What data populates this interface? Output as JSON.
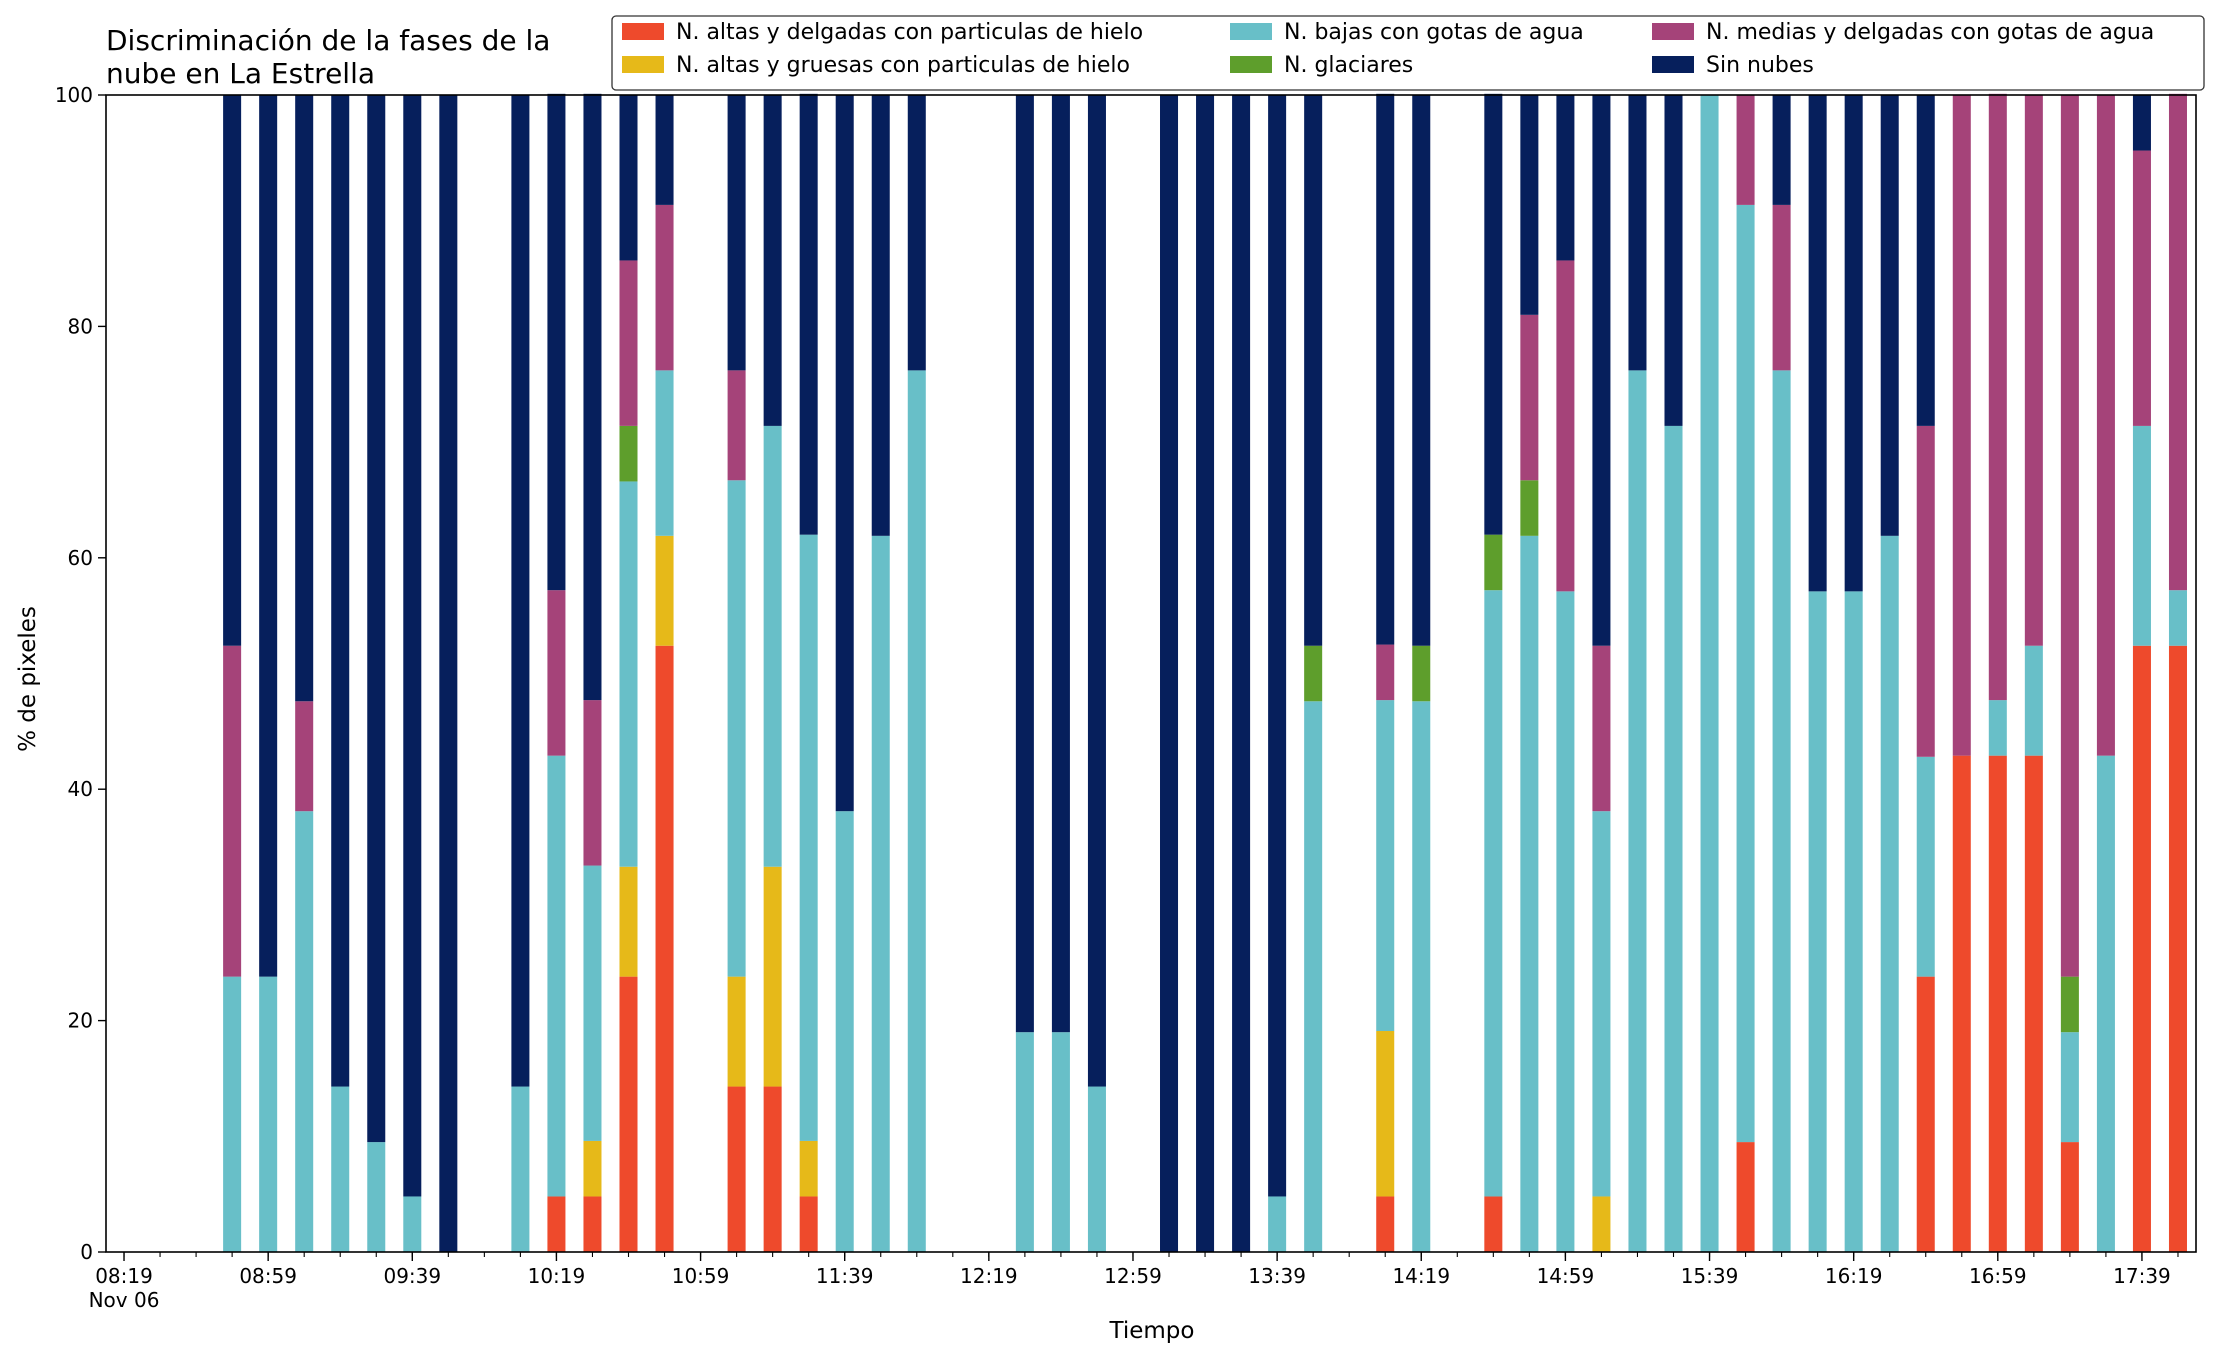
{
  "chart_data": {
    "type": "bar",
    "stacked": true,
    "title_lines": [
      "Discriminación de la fases de la",
      "nube en La Estrella"
    ],
    "xlabel": "Tiempo",
    "ylabel": "% de pixeles",
    "ylim": [
      0,
      100
    ],
    "yticks": [
      "0",
      "20",
      "40",
      "60",
      "80",
      "100"
    ],
    "grid": false,
    "legend_position": "top-right",
    "x_range_minutes": [
      -5,
      575
    ],
    "x_tick_labels": [
      {
        "minute": 0,
        "line1": "08:19",
        "line2": "Nov 06"
      },
      {
        "minute": 40,
        "line1": "08:59"
      },
      {
        "minute": 80,
        "line1": "09:39"
      },
      {
        "minute": 120,
        "line1": "10:19"
      },
      {
        "minute": 160,
        "line1": "10:59"
      },
      {
        "minute": 200,
        "line1": "11:39"
      },
      {
        "minute": 240,
        "line1": "12:19"
      },
      {
        "minute": 280,
        "line1": "12:59"
      },
      {
        "minute": 320,
        "line1": "13:39"
      },
      {
        "minute": 360,
        "line1": "14:19"
      },
      {
        "minute": 400,
        "line1": "14:59"
      },
      {
        "minute": 440,
        "line1": "15:39"
      },
      {
        "minute": 480,
        "line1": "16:19"
      },
      {
        "minute": 520,
        "line1": "16:59"
      },
      {
        "minute": 560,
        "line1": "17:39"
      }
    ],
    "x_minor_step_minutes": 10,
    "x": [
      30,
      40,
      50,
      60,
      70,
      80,
      90,
      110,
      120,
      130,
      140,
      150,
      170,
      180,
      190,
      200,
      210,
      220,
      250,
      260,
      270,
      290,
      300,
      310,
      320,
      330,
      350,
      360,
      380,
      390,
      400,
      410,
      420,
      430,
      440,
      450,
      460,
      470,
      480,
      490,
      500,
      510,
      520,
      530,
      540,
      550,
      560,
      570
    ],
    "series": [
      {
        "name": "N. altas y delgadas con particulas de hielo",
        "color": "#ee4a2c",
        "values": [
          0,
          0,
          0,
          0,
          0,
          0,
          0,
          0,
          4.8,
          4.8,
          23.8,
          52.4,
          14.3,
          14.3,
          4.8,
          0,
          0,
          0,
          0,
          0,
          0,
          0,
          0,
          0,
          0,
          0,
          4.8,
          0,
          4.8,
          0,
          0,
          0,
          0,
          0,
          0,
          9.5,
          0,
          0,
          0,
          0,
          23.8,
          42.9,
          42.9,
          42.9,
          9.5,
          0,
          52.4,
          52.4
        ]
      },
      {
        "name": "N. altas y gruesas con particulas de hielo",
        "color": "#e6b919",
        "values": [
          0,
          0,
          0,
          0,
          0,
          0,
          0,
          0,
          0,
          4.8,
          9.5,
          9.5,
          9.5,
          19.0,
          4.8,
          0,
          0,
          0,
          0,
          0,
          0,
          0,
          0,
          0,
          0,
          0,
          14.3,
          0,
          0,
          0,
          0,
          4.8,
          0,
          0,
          0,
          0,
          0,
          0,
          0,
          0,
          0,
          0,
          0,
          0,
          0,
          0,
          0,
          0
        ]
      },
      {
        "name": "N. bajas con gotas de agua",
        "color": "#68bfc8",
        "values": [
          23.8,
          23.8,
          38.1,
          14.3,
          9.5,
          4.8,
          0,
          14.3,
          38.1,
          23.8,
          33.3,
          14.3,
          42.9,
          38.1,
          52.4,
          38.1,
          61.9,
          76.2,
          19.0,
          19.0,
          14.3,
          0,
          0,
          0,
          4.8,
          47.6,
          28.6,
          47.6,
          52.4,
          61.9,
          57.1,
          33.3,
          76.2,
          71.4,
          100,
          81.0,
          76.2,
          57.1,
          57.1,
          61.9,
          19.0,
          0,
          4.8,
          9.5,
          9.5,
          42.9,
          19.0,
          4.8
        ]
      },
      {
        "name": "N. glaciares",
        "color": "#5e9e2c",
        "values": [
          0,
          0,
          0,
          0,
          0,
          0,
          0,
          0,
          0,
          0,
          4.8,
          0,
          0,
          0,
          0,
          0,
          0,
          0,
          0,
          0,
          0,
          0,
          0,
          0,
          0,
          4.8,
          0,
          4.8,
          4.8,
          4.8,
          0,
          0,
          0,
          0,
          0,
          0,
          0,
          0,
          0,
          0,
          0,
          0,
          0,
          0,
          4.8,
          0,
          0,
          0
        ]
      },
      {
        "name": "N. medias y delgadas con gotas de agua",
        "color": "#a54379",
        "values": [
          28.6,
          0,
          9.5,
          0,
          0,
          0,
          0,
          0,
          14.3,
          14.3,
          14.3,
          14.3,
          9.5,
          0,
          0,
          0,
          0,
          0,
          0,
          0,
          0,
          0,
          0,
          0,
          0,
          0,
          4.8,
          0,
          0,
          14.3,
          28.6,
          14.3,
          0,
          0,
          0,
          9.5,
          14.3,
          0,
          0,
          0,
          28.6,
          57.1,
          52.4,
          47.6,
          76.2,
          57.1,
          23.8,
          42.9
        ]
      },
      {
        "name": "Sin nubes",
        "color": "#061f5c",
        "values": [
          47.6,
          76.2,
          52.4,
          85.7,
          90.5,
          95.2,
          100,
          85.7,
          42.9,
          52.4,
          14.3,
          9.5,
          23.8,
          28.6,
          38.1,
          61.9,
          38.1,
          23.8,
          81.0,
          81.0,
          85.7,
          100,
          100,
          100,
          95.2,
          47.6,
          47.6,
          47.6,
          38.1,
          19.0,
          14.3,
          47.6,
          23.8,
          28.6,
          0,
          0,
          9.5,
          42.9,
          42.9,
          38.1,
          28.6,
          0,
          0,
          0,
          0,
          0,
          4.8,
          0
        ]
      }
    ]
  }
}
